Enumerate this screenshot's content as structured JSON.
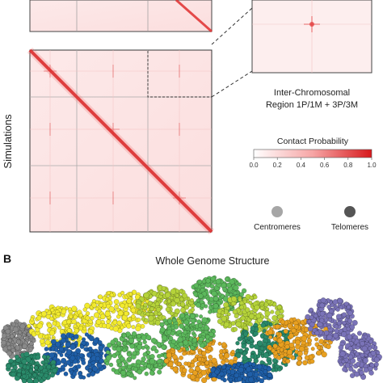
{
  "figure": {
    "side_label": "Simulations",
    "inset": {
      "caption_line1": "Inter-Chromosomal",
      "caption_line2": "Region 1P/1M + 3P/3M"
    },
    "colorbar": {
      "title": "Contact Probability",
      "ticks": [
        "0.0",
        "0.2",
        "0.4",
        "0.6",
        "0.8",
        "1.0"
      ],
      "color_low": "#ffffff",
      "color_high": "#d7191c"
    },
    "legend": {
      "items": [
        {
          "label": "Centromeres",
          "color": "#a6a6a6"
        },
        {
          "label": "Telomeres",
          "color": "#555555"
        }
      ]
    },
    "panel_b": {
      "letter": "B",
      "title": "Whole Genome Structure",
      "palette": [
        "#f2ea2e",
        "#b5d33a",
        "#5cb85c",
        "#2a8a6a",
        "#1f5fa8",
        "#7a73b8",
        "#e8a020",
        "#8a8a8a"
      ]
    }
  }
}
